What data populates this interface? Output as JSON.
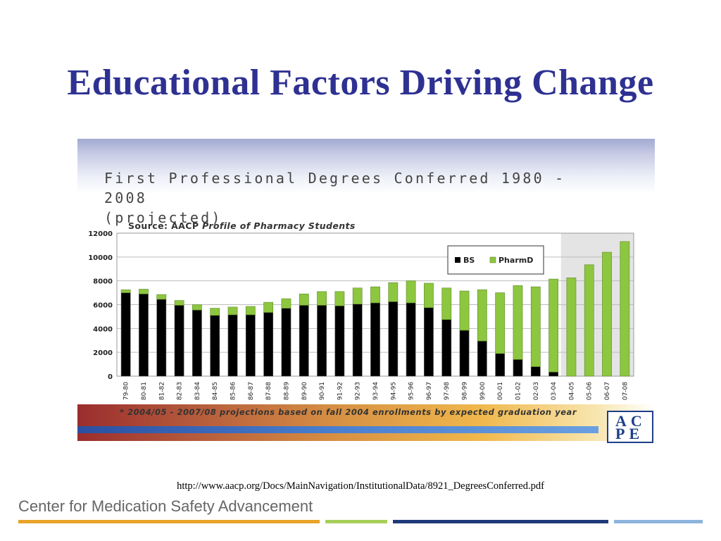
{
  "slide": {
    "title": "Educational Factors Driving Change",
    "source_url": "http://www.aacp.org/Docs/MainNavigation/InstitutionalData/8921_DegreesConferred.pdf",
    "org_name": "Center for Medication Safety Advancement"
  },
  "figure": {
    "title": "First Professional Degrees Conferred 1980 - 2008\n(projected)",
    "source_prefix": "Source: AACP",
    "source_publication": "Profile of Pharmacy Students",
    "footnote": "* 2004/05 - 2007/08 projections based on fall 2004 enrollments by expected graduation year",
    "logo_line1": "AC",
    "logo_line2": "PE",
    "logo_mark": "®"
  },
  "chart_data": {
    "type": "bar",
    "stacked": true,
    "categories": [
      "79-80",
      "80-81",
      "81-82",
      "82-83",
      "83-84",
      "84-85",
      "85-86",
      "86-87",
      "87-88",
      "88-89",
      "89-90",
      "90-91",
      "91-92",
      "92-93",
      "93-94",
      "94-95",
      "95-96",
      "96-97",
      "97-98",
      "98-99",
      "99-00",
      "00-01",
      "01-02",
      "02-03",
      "03-04",
      "04-05",
      "05-06",
      "06-07",
      "07-08"
    ],
    "series": [
      {
        "name": "BS",
        "color": "#000000",
        "values": [
          7000,
          6900,
          6450,
          5950,
          5550,
          5100,
          5150,
          5150,
          5350,
          5700,
          5950,
          5950,
          5900,
          6050,
          6150,
          6250,
          6150,
          5750,
          4750,
          3850,
          2950,
          1900,
          1400,
          800,
          350,
          0,
          0,
          0,
          0
        ]
      },
      {
        "name": "PharmD",
        "color": "#8dc63f",
        "values": [
          250,
          400,
          400,
          400,
          450,
          600,
          650,
          700,
          850,
          800,
          950,
          1150,
          1200,
          1350,
          1350,
          1600,
          1850,
          2050,
          2650,
          3300,
          4300,
          5100,
          6200,
          6700,
          7800,
          8250,
          9350,
          10400,
          11300
        ]
      }
    ],
    "ylim": [
      0,
      12000
    ],
    "yticks": [
      "0",
      "2000",
      "4000",
      "6000",
      "8000",
      "10000",
      "12000"
    ],
    "grid": true,
    "legend_position": "top-right",
    "projected_region": [
      "04-05",
      "07-08"
    ]
  }
}
